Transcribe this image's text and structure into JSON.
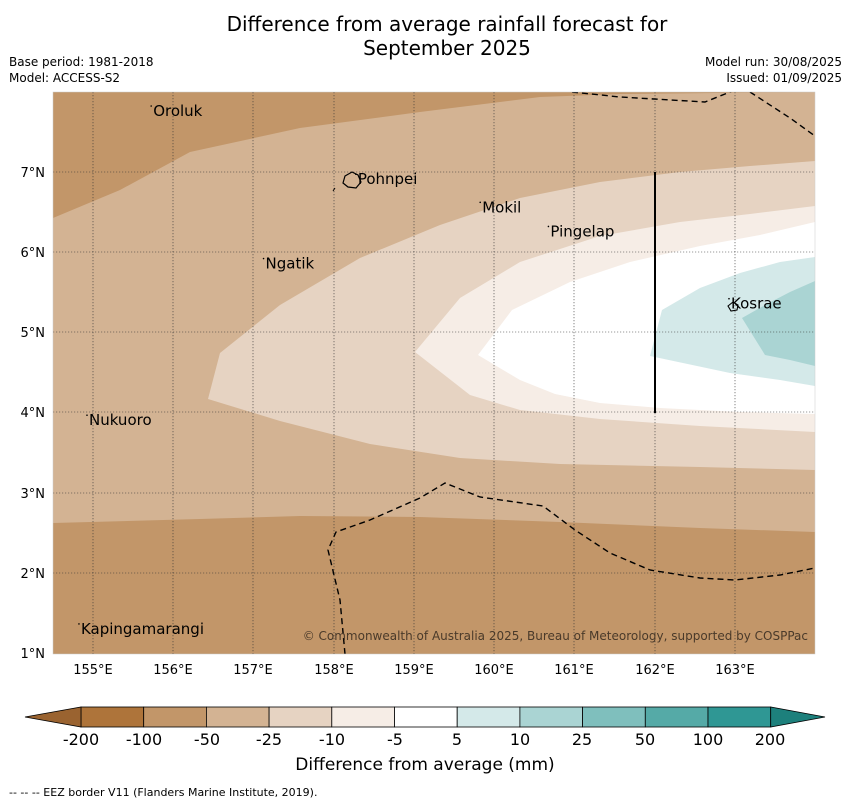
{
  "header": {
    "title_line1": "Difference from average rainfall forecast for",
    "title_line2": "September 2025",
    "base_period": "Base period: 1981-2018",
    "model": "Model: ACCESS-S2",
    "model_run": "Model run: 30/08/2025",
    "issued": "Issued: 01/09/2025"
  },
  "map": {
    "x_ticks": [
      "155°E",
      "156°E",
      "157°E",
      "158°E",
      "159°E",
      "160°E",
      "161°E",
      "162°E",
      "163°E"
    ],
    "y_ticks": [
      "7°N",
      "6°N",
      "5°N",
      "4°N",
      "3°N",
      "2°N",
      "1°N"
    ],
    "places": [
      {
        "name": "Oroluk",
        "lon": 155.75,
        "lat": 7.7
      },
      {
        "name": "Pohnpei",
        "lon": 158.3,
        "lat": 6.85
      },
      {
        "name": "Mokil",
        "lon": 159.85,
        "lat": 6.5
      },
      {
        "name": "Pingelap",
        "lon": 160.7,
        "lat": 6.2
      },
      {
        "name": "Ngatik",
        "lon": 157.15,
        "lat": 5.8
      },
      {
        "name": "Kosrae",
        "lon": 162.95,
        "lat": 5.3
      },
      {
        "name": "Nukuoro",
        "lon": 154.95,
        "lat": 3.85
      },
      {
        "name": "Kapingamarangi",
        "lon": 154.85,
        "lat": 1.25
      }
    ],
    "copyright": "© Commonwealth of Australia 2025, Bureau of Meteorology, supported by COSPPac"
  },
  "colorbar": {
    "labels": [
      "-200",
      "-100",
      "-50",
      "-25",
      "-10",
      "-5",
      "5",
      "10",
      "25",
      "50",
      "100",
      "200"
    ],
    "colors": [
      "#ae743a",
      "#c29669",
      "#d3b393",
      "#e6d3c2",
      "#f6ede6",
      "#ffffff",
      "#d4e9e9",
      "#aad4d3",
      "#7fbfbd",
      "#55aaa7",
      "#2f9794"
    ],
    "title": "Difference from average (mm)"
  },
  "footnote": "--  --  -- EEZ border V11 (Flanders Marine Institute, 2019)."
}
